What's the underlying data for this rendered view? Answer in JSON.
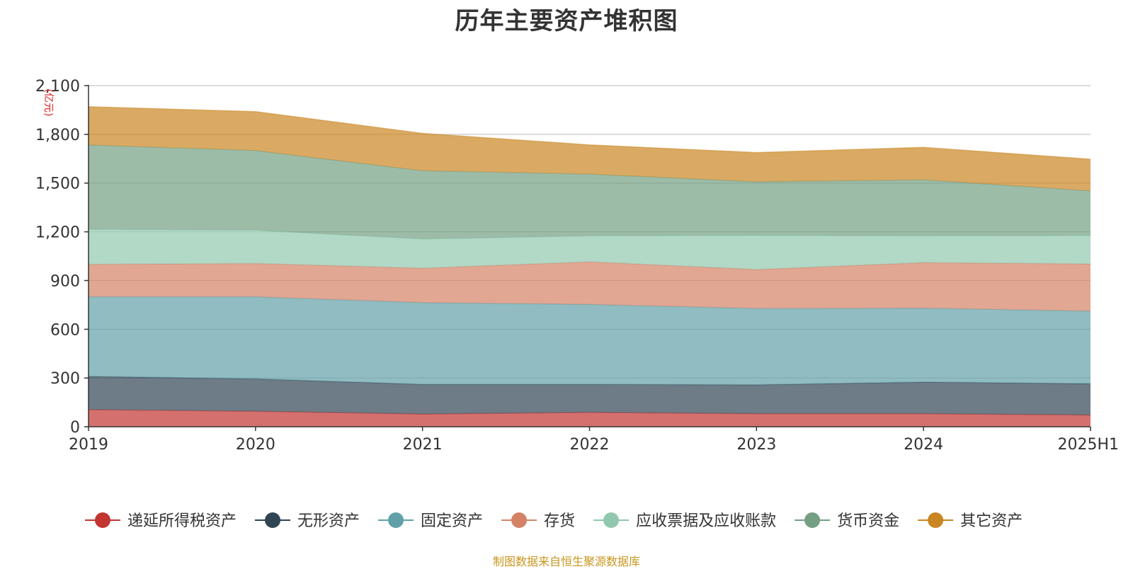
{
  "chart_data": {
    "type": "area",
    "stacked": true,
    "title": "历年主要资产堆积图",
    "unit": "(亿元)",
    "categories": [
      "2019",
      "2020",
      "2021",
      "2022",
      "2023",
      "2024",
      "2025H1"
    ],
    "ylim": [
      0,
      2100
    ],
    "yticks": [
      0,
      300,
      600,
      900,
      1200,
      1500,
      1800,
      2100
    ],
    "ytick_labels": [
      "0",
      "300",
      "600",
      "900",
      "1,200",
      "1,500",
      "1,800",
      "2,100"
    ],
    "grid": true,
    "legend_position": "bottom",
    "series": [
      {
        "name": "递延所得税资产",
        "color": "#c23531",
        "values": [
          105,
          95,
          78,
          88,
          80,
          80,
          72
        ]
      },
      {
        "name": "无形资产",
        "color": "#2f4554",
        "values": [
          205,
          200,
          183,
          173,
          178,
          195,
          193
        ]
      },
      {
        "name": "固定资产",
        "color": "#61a0a8",
        "values": [
          490,
          505,
          503,
          492,
          470,
          455,
          447
        ]
      },
      {
        "name": "存货",
        "color": "#d48265",
        "values": [
          200,
          205,
          212,
          262,
          240,
          280,
          290
        ]
      },
      {
        "name": "应收票据及应收账款",
        "color": "#91c7ae",
        "values": [
          215,
          205,
          180,
          160,
          210,
          165,
          175
        ]
      },
      {
        "name": "货币资金",
        "color": "#749f83",
        "values": [
          520,
          490,
          420,
          380,
          330,
          345,
          275
        ]
      },
      {
        "name": "其它资产",
        "color": "#ca8622",
        "values": [
          235,
          240,
          230,
          180,
          180,
          200,
          195
        ]
      }
    ]
  },
  "source": "制图数据来自恒生聚源数据库"
}
